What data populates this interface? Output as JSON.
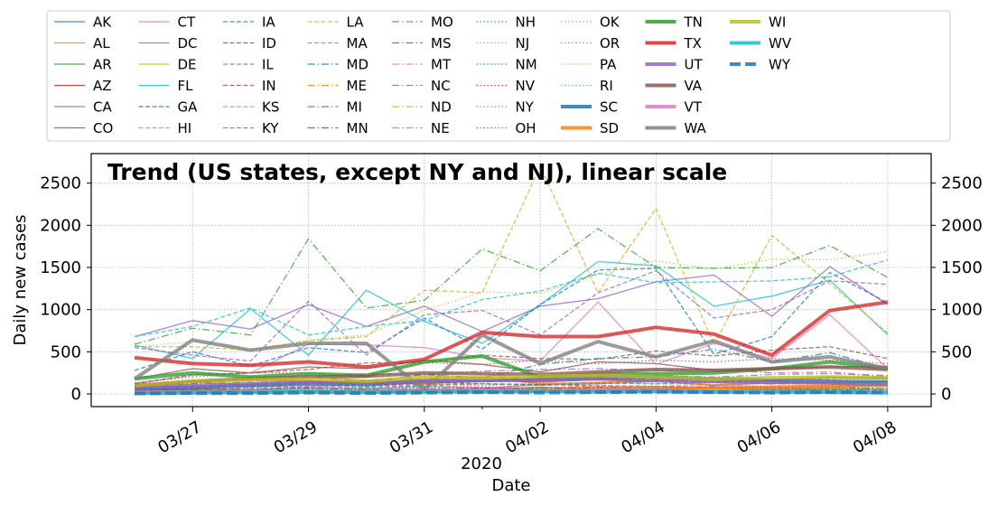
{
  "chart_data": {
    "type": "line",
    "title": "Trend (US states, except NY and NJ), linear scale",
    "xlabel": "Date",
    "x_offset_label": "2020",
    "ylabel": "Daily new cases",
    "xlim": [
      "2020-03-25T06:00",
      "2020-04-08T18:00"
    ],
    "ylim": [
      -150,
      2850
    ],
    "yticks": [
      0,
      500,
      1000,
      1500,
      2000,
      2500
    ],
    "secondary_yaxis": true,
    "grid": true,
    "legend_placement": "above plot, 10 columns",
    "x": [
      "03/26",
      "03/27",
      "03/28",
      "03/29",
      "03/30",
      "03/31",
      "04/01",
      "04/02",
      "04/03",
      "04/04",
      "04/05",
      "04/06",
      "04/07",
      "04/08"
    ],
    "xtick_labels": [
      "03/27",
      "03/29",
      "03/31",
      "04/02",
      "04/04",
      "04/06",
      "04/08"
    ],
    "xtick_positions": [
      "03/27",
      "03/29",
      "03/31",
      "04/02",
      "04/04",
      "04/06",
      "04/08"
    ],
    "minor_xtick_positions": [
      "04/01"
    ],
    "series": [
      {
        "name": "AK",
        "color": "#1f77b4",
        "style": "solid",
        "width": 1.3,
        "values": [
          10,
          12,
          15,
          12,
          18,
          13,
          14,
          15,
          14,
          16,
          13,
          11,
          12,
          10
        ]
      },
      {
        "name": "AL",
        "color": "#ff7f0e",
        "style": "solid",
        "width": 1.3,
        "values": [
          110,
          140,
          110,
          130,
          150,
          170,
          200,
          120,
          140,
          160,
          110,
          150,
          120,
          150
        ]
      },
      {
        "name": "AR",
        "color": "#2ca02c",
        "style": "solid",
        "width": 1.3,
        "values": [
          40,
          50,
          40,
          50,
          45,
          50,
          60,
          80,
          60,
          65,
          70,
          50,
          60,
          55
        ]
      },
      {
        "name": "AZ",
        "color": "#d62728",
        "style": "solid",
        "width": 1.3,
        "values": [
          120,
          140,
          170,
          150,
          130,
          120,
          160,
          140,
          170,
          150,
          190,
          170,
          200,
          180
        ]
      },
      {
        "name": "CA",
        "color": "#9467bd",
        "style": "solid",
        "width": 1.3,
        "values": [
          680,
          870,
          770,
          1060,
          800,
          1040,
          740,
          1040,
          1130,
          1330,
          1410,
          920,
          1510,
          1060
        ]
      },
      {
        "name": "CO",
        "color": "#8c564b",
        "style": "solid",
        "width": 1.3,
        "values": [
          180,
          300,
          250,
          320,
          300,
          400,
          350,
          260,
          380,
          360,
          280,
          300,
          320,
          330
        ]
      },
      {
        "name": "CT",
        "color": "#e377c2",
        "style": "solid",
        "width": 1.3,
        "values": [
          130,
          220,
          250,
          590,
          580,
          550,
          430,
          390,
          1090,
          350,
          600,
          420,
          940,
          300
        ]
      },
      {
        "name": "DC",
        "color": "#7f7f7f",
        "style": "solid",
        "width": 1.3,
        "values": [
          40,
          60,
          50,
          80,
          60,
          90,
          70,
          110,
          120,
          150,
          100,
          130,
          140,
          140
        ]
      },
      {
        "name": "DE",
        "color": "#bcbd22",
        "style": "solid",
        "width": 1.3,
        "values": [
          30,
          40,
          50,
          40,
          40,
          50,
          60,
          70,
          80,
          90,
          70,
          80,
          90,
          80
        ]
      },
      {
        "name": "FL",
        "color": "#17becf",
        "style": "solid",
        "width": 1.3,
        "values": [
          580,
          420,
          1010,
          460,
          1230,
          860,
          600,
          1060,
          1570,
          1520,
          1040,
          1160,
          1350,
          700
        ]
      },
      {
        "name": "GA",
        "color": "#1f77b4",
        "style": "dashed",
        "width": 1.3,
        "values": [
          280,
          500,
          330,
          550,
          490,
          900,
          530,
          1060,
          1470,
          1490,
          470,
          680,
          1440,
          1080
        ]
      },
      {
        "name": "HI",
        "color": "#ff7f0e",
        "style": "dashed",
        "width": 1.3,
        "values": [
          10,
          15,
          20,
          15,
          20,
          25,
          20,
          15,
          30,
          20,
          25,
          15,
          20,
          15
        ]
      },
      {
        "name": "IA",
        "color": "#2ca02c",
        "style": "dashed",
        "width": 1.3,
        "values": [
          40,
          50,
          60,
          70,
          80,
          100,
          120,
          110,
          130,
          120,
          140,
          120,
          150,
          130
        ]
      },
      {
        "name": "ID",
        "color": "#d62728",
        "style": "dashed",
        "width": 1.3,
        "values": [
          50,
          80,
          120,
          130,
          100,
          140,
          120,
          110,
          100,
          90,
          70,
          60,
          50,
          40
        ]
      },
      {
        "name": "IL",
        "color": "#9467bd",
        "style": "dashed",
        "width": 1.3,
        "values": [
          550,
          460,
          390,
          1100,
          460,
          940,
          990,
          700,
          1200,
          1460,
          900,
          1000,
          1340,
          1300
        ]
      },
      {
        "name": "IN",
        "color": "#8c564b",
        "style": "dashed",
        "width": 1.3,
        "values": [
          120,
          230,
          250,
          290,
          370,
          370,
          460,
          420,
          410,
          510,
          450,
          520,
          560,
          420
        ]
      },
      {
        "name": "KS",
        "color": "#e377c2",
        "style": "dashed",
        "width": 1.3,
        "values": [
          50,
          70,
          60,
          80,
          70,
          90,
          80,
          70,
          100,
          90,
          110,
          80,
          90,
          100
        ]
      },
      {
        "name": "KY",
        "color": "#7f7f7f",
        "style": "dashed",
        "width": 1.3,
        "values": [
          60,
          70,
          80,
          90,
          100,
          110,
          120,
          100,
          130,
          150,
          140,
          160,
          180,
          200
        ]
      },
      {
        "name": "LA",
        "color": "#bcbd22",
        "style": "dashed",
        "width": 1.3,
        "values": [
          560,
          560,
          520,
          630,
          680,
          1230,
          1200,
          2700,
          1200,
          2200,
          580,
          1880,
          1310,
          720
        ]
      },
      {
        "name": "MA",
        "color": "#17becf",
        "style": "dashed",
        "width": 1.3,
        "values": [
          680,
          800,
          1020,
          700,
          800,
          870,
          1120,
          1220,
          1430,
          1320,
          1330,
          1340,
          1390,
          1590
        ]
      },
      {
        "name": "MD",
        "color": "#1f77b4",
        "style": "dashdot",
        "width": 1.3,
        "values": [
          90,
          120,
          200,
          200,
          150,
          230,
          190,
          350,
          420,
          440,
          530,
          380,
          490,
          300
        ]
      },
      {
        "name": "ME",
        "color": "#ff7f0e",
        "style": "dashdot",
        "width": 1.3,
        "values": [
          15,
          20,
          25,
          20,
          30,
          25,
          30,
          35,
          25,
          30,
          25,
          20,
          30,
          25
        ]
      },
      {
        "name": "MI",
        "color": "#2ca02c",
        "style": "dashdot",
        "width": 1.3,
        "values": [
          590,
          780,
          700,
          1840,
          1020,
          1110,
          1720,
          1460,
          1960,
          1500,
          1490,
          1500,
          1760,
          1380
        ]
      },
      {
        "name": "MN",
        "color": "#d62728",
        "style": "dashdot",
        "width": 1.3,
        "values": [
          40,
          50,
          60,
          70,
          50,
          60,
          70,
          60,
          80,
          70,
          90,
          70,
          80,
          60
        ]
      },
      {
        "name": "MO",
        "color": "#9467bd",
        "style": "dashdot",
        "width": 1.3,
        "values": [
          80,
          150,
          180,
          200,
          240,
          230,
          270,
          290,
          300,
          280,
          290,
          250,
          260,
          200
        ]
      },
      {
        "name": "MS",
        "color": "#8c564b",
        "style": "dashdot",
        "width": 1.3,
        "values": [
          80,
          90,
          100,
          120,
          130,
          140,
          150,
          160,
          180,
          170,
          140,
          120,
          130,
          110
        ]
      },
      {
        "name": "MT",
        "color": "#e377c2",
        "style": "dashdot",
        "width": 1.3,
        "values": [
          15,
          20,
          25,
          30,
          25,
          20,
          25,
          20,
          15,
          20,
          15,
          10,
          15,
          10
        ]
      },
      {
        "name": "NC",
        "color": "#7f7f7f",
        "style": "dashdot",
        "width": 1.3,
        "values": [
          100,
          120,
          140,
          150,
          160,
          180,
          200,
          190,
          210,
          220,
          200,
          230,
          240,
          220
        ]
      },
      {
        "name": "ND",
        "color": "#bcbd22",
        "style": "dashdot",
        "width": 1.3,
        "values": [
          10,
          15,
          15,
          20,
          15,
          20,
          25,
          20,
          20,
          25,
          20,
          20,
          25,
          20
        ]
      },
      {
        "name": "NE",
        "color": "#17becf",
        "style": "dashdot",
        "width": 1.3,
        "values": [
          10,
          15,
          20,
          25,
          20,
          30,
          35,
          40,
          30,
          45,
          40,
          50,
          45,
          55
        ]
      },
      {
        "name": "NH",
        "color": "#1f77b4",
        "style": "dotted",
        "width": 1.3,
        "values": [
          15,
          20,
          25,
          30,
          25,
          35,
          40,
          30,
          35,
          40,
          35,
          30,
          40,
          35
        ]
      },
      {
        "name": "NJ",
        "color": "#ff7f0e",
        "style": "dotted",
        "width": 1.3,
        "values": [
          60,
          80,
          100,
          90,
          110,
          120,
          100,
          130,
          120,
          140,
          130,
          120,
          110,
          130
        ]
      },
      {
        "name": "NM",
        "color": "#2ca02c",
        "style": "dotted",
        "width": 1.3,
        "values": [
          20,
          30,
          30,
          40,
          40,
          50,
          50,
          60,
          70,
          80,
          70,
          90,
          80,
          100
        ]
      },
      {
        "name": "NV",
        "color": "#d62728",
        "style": "dotted",
        "width": 1.3,
        "values": [
          80,
          100,
          120,
          150,
          160,
          140,
          180,
          170,
          200,
          180,
          160,
          150,
          140,
          130
        ]
      },
      {
        "name": "NY",
        "color": "#9467bd",
        "style": "dotted",
        "width": 1.3,
        "values": [
          30,
          40,
          50,
          60,
          50,
          70,
          60,
          80,
          70,
          90,
          80,
          70,
          80,
          60
        ]
      },
      {
        "name": "OH",
        "color": "#8c564b",
        "style": "dotted",
        "width": 1.3,
        "values": [
          130,
          200,
          250,
          250,
          200,
          370,
          350,
          400,
          360,
          400,
          380,
          420,
          400,
          360
        ]
      },
      {
        "name": "OK",
        "color": "#e377c2",
        "style": "dotted",
        "width": 1.3,
        "values": [
          50,
          70,
          80,
          90,
          100,
          110,
          120,
          100,
          130,
          120,
          110,
          90,
          100,
          110
        ]
      },
      {
        "name": "OR",
        "color": "#7f7f7f",
        "style": "dotted",
        "width": 1.3,
        "values": [
          30,
          40,
          50,
          60,
          70,
          60,
          80,
          70,
          90,
          80,
          70,
          60,
          70,
          60
        ]
      },
      {
        "name": "PA",
        "color": "#bcbd22",
        "style": "dotted",
        "width": 1.3,
        "values": [
          560,
          620,
          520,
          640,
          700,
          990,
          1210,
          1190,
          1420,
          1580,
          1480,
          1600,
          1590,
          1690
        ]
      },
      {
        "name": "RI",
        "color": "#17becf",
        "style": "dotted",
        "width": 1.3,
        "values": [
          30,
          40,
          50,
          60,
          70,
          80,
          100,
          130,
          120,
          150,
          140,
          160,
          180,
          170
        ]
      },
      {
        "name": "SC",
        "color": "#1f77b4",
        "style": "solid",
        "width": 4,
        "values": [
          60,
          80,
          100,
          120,
          110,
          150,
          160,
          170,
          190,
          200,
          180,
          160,
          150,
          140
        ]
      },
      {
        "name": "SD",
        "color": "#ff7f0e",
        "style": "solid",
        "width": 4,
        "values": [
          10,
          15,
          20,
          25,
          20,
          30,
          35,
          40,
          50,
          60,
          70,
          80,
          90,
          120
        ]
      },
      {
        "name": "TN",
        "color": "#2ca02c",
        "style": "solid",
        "width": 4,
        "values": [
          180,
          250,
          200,
          240,
          220,
          380,
          450,
          200,
          230,
          240,
          250,
          300,
          380,
          300
        ]
      },
      {
        "name": "TX",
        "color": "#d62728",
        "style": "solid",
        "width": 4,
        "values": [
          430,
          360,
          340,
          380,
          320,
          410,
          730,
          680,
          680,
          790,
          710,
          460,
          990,
          1090
        ]
      },
      {
        "name": "UT",
        "color": "#9467bd",
        "style": "solid",
        "width": 4,
        "values": [
          80,
          100,
          120,
          140,
          130,
          150,
          160,
          170,
          180,
          160,
          150,
          140,
          130,
          110
        ]
      },
      {
        "name": "VA",
        "color": "#8c564b",
        "style": "solid",
        "width": 4,
        "values": [
          100,
          150,
          180,
          200,
          210,
          250,
          240,
          230,
          260,
          290,
          280,
          300,
          320,
          290
        ]
      },
      {
        "name": "VT",
        "color": "#e377c2",
        "style": "solid",
        "width": 4,
        "values": [
          20,
          25,
          30,
          35,
          30,
          40,
          45,
          35,
          40,
          45,
          30,
          35,
          25,
          20
        ]
      },
      {
        "name": "WA",
        "color": "#7f7f7f",
        "style": "solid",
        "width": 4,
        "values": [
          180,
          640,
          520,
          600,
          600,
          50,
          700,
          360,
          620,
          440,
          630,
          380,
          440,
          300
        ]
      },
      {
        "name": "WI",
        "color": "#bcbd22",
        "style": "solid",
        "width": 4,
        "values": [
          100,
          150,
          170,
          180,
          150,
          200,
          190,
          210,
          220,
          200,
          180,
          190,
          200,
          190
        ]
      },
      {
        "name": "WV",
        "color": "#17becf",
        "style": "solid",
        "width": 4,
        "values": [
          10,
          15,
          20,
          25,
          20,
          25,
          30,
          35,
          30,
          35,
          25,
          30,
          20,
          15
        ]
      },
      {
        "name": "WY",
        "color": "#1f77b4",
        "style": "dashed",
        "width": 4,
        "values": [
          5,
          10,
          10,
          15,
          10,
          15,
          20,
          15,
          20,
          25,
          20,
          15,
          20,
          15
        ]
      }
    ]
  }
}
